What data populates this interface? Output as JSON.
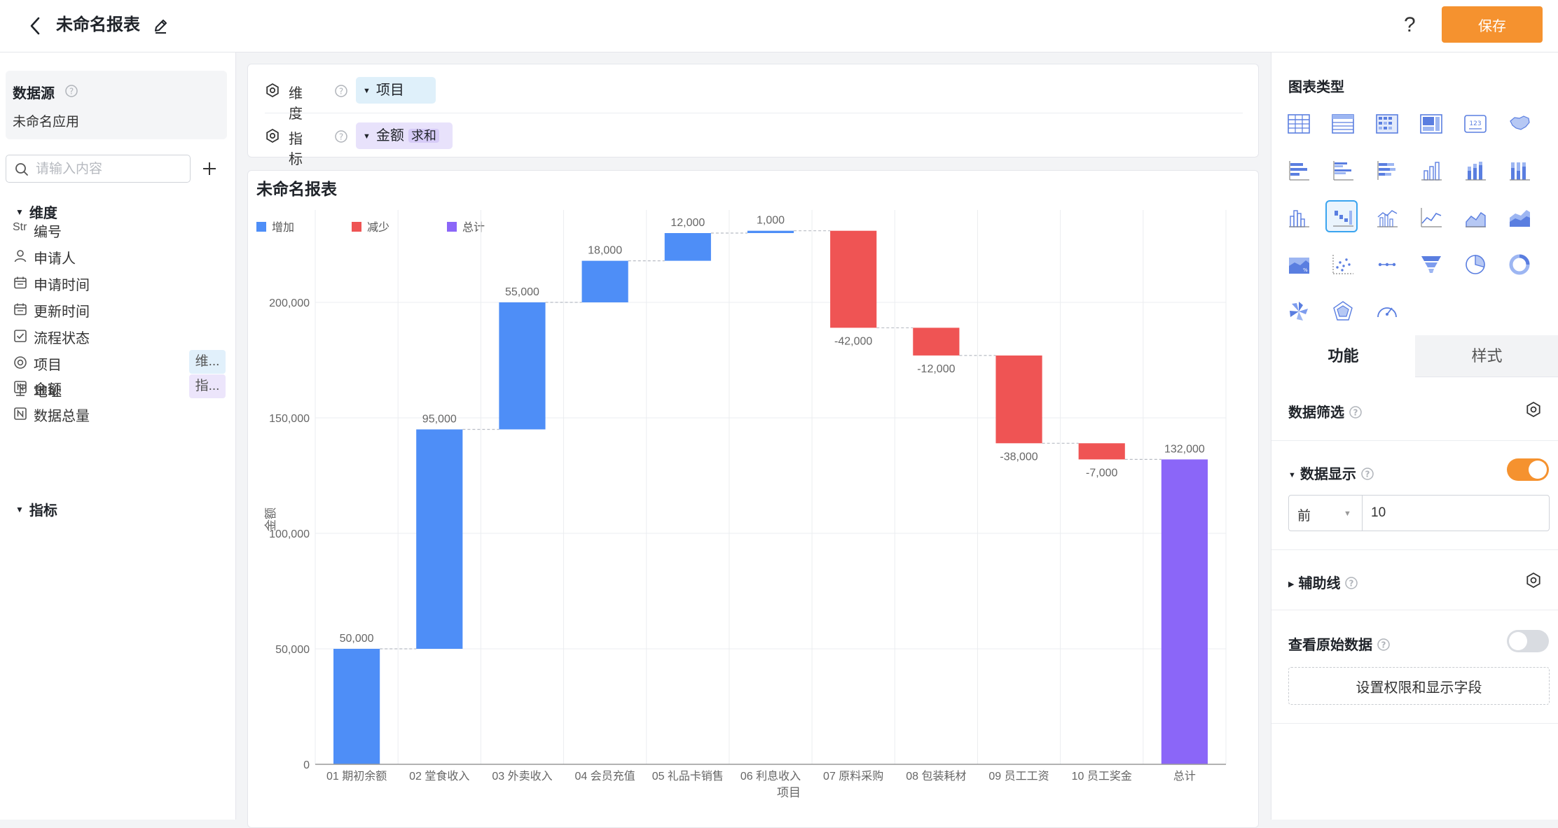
{
  "header": {
    "title": "未命名报表",
    "save_label": "保存",
    "help_label": "?"
  },
  "sidebar": {
    "datasource_title": "数据源",
    "datasource_name": "未命名应用",
    "search_placeholder": "请输入内容",
    "dimension_section": "维度",
    "measure_section": "指标",
    "dimension_fields": [
      {
        "icon": "string-type-icon",
        "label": "编号",
        "prefix": "Str",
        "tag": ""
      },
      {
        "icon": "person-icon",
        "label": "申请人",
        "prefix": "",
        "tag": ""
      },
      {
        "icon": "calendar-icon",
        "label": "申请时间",
        "prefix": "",
        "tag": ""
      },
      {
        "icon": "calendar-icon",
        "label": "更新时间",
        "prefix": "",
        "tag": ""
      },
      {
        "icon": "checkbox-icon",
        "label": "流程状态",
        "prefix": "",
        "tag": ""
      },
      {
        "icon": "radio-icon",
        "label": "项目",
        "prefix": "",
        "tag": "维..."
      },
      {
        "icon": "location-icon",
        "label": "地址",
        "prefix": "",
        "tag": ""
      }
    ],
    "measure_fields": [
      {
        "icon": "number-type-icon",
        "label": "金额",
        "tag": "指..."
      },
      {
        "icon": "number-type-icon",
        "label": "数据总量",
        "tag": ""
      }
    ]
  },
  "config": {
    "dimension_label": "维度",
    "dimension_chip": "项目",
    "measure_label": "指标",
    "measure_chip": "金额",
    "measure_agg": "求和"
  },
  "chart_data": {
    "type": "bar",
    "subtype": "waterfall",
    "title": "未命名报表",
    "xlabel": "项目",
    "ylabel": "金额",
    "ylim": [
      0,
      240000
    ],
    "yticks": [
      0,
      50000,
      100000,
      150000,
      200000
    ],
    "ytick_labels": [
      "0",
      "50,000",
      "100,000",
      "150,000",
      "200,000"
    ],
    "grid": true,
    "legend_position": "top-left",
    "legend": [
      {
        "name": "增加",
        "color": "#4e8ef7"
      },
      {
        "name": "减少",
        "color": "#ef5454"
      },
      {
        "name": "总计",
        "color": "#8b66f8"
      }
    ],
    "categories": [
      "01 期初余额",
      "02 堂食收入",
      "03 外卖收入",
      "04 会员充值",
      "05 礼品卡销售",
      "06 利息收入",
      "07 原料采购",
      "08 包装耗材",
      "09 员工工资",
      "10 员工奖金",
      "总计"
    ],
    "values": [
      50000,
      95000,
      55000,
      18000,
      12000,
      1000,
      -42000,
      -12000,
      -38000,
      -7000,
      132000
    ],
    "value_labels": [
      "50,000",
      "95,000",
      "55,000",
      "18,000",
      "12,000",
      "1,000",
      "-42,000",
      "-12,000",
      "-38,000",
      "-7,000",
      "132,000"
    ],
    "kinds": [
      "increase",
      "increase",
      "increase",
      "increase",
      "increase",
      "increase",
      "decrease",
      "decrease",
      "decrease",
      "decrease",
      "total"
    ]
  },
  "right_panel": {
    "chart_type_title": "图表类型",
    "chart_types": [
      "table-chart-icon",
      "detail-table-icon",
      "pivot-table-icon",
      "card-chart-icon",
      "kpi-number-icon",
      "map-chart-icon",
      "bar-horizontal-icon",
      "bar-grouped-horizontal-icon",
      "bar-stacked-horizontal-icon",
      "column-chart-icon",
      "column-stacked-icon",
      "column-percent-icon",
      "histogram-icon",
      "waterfall-icon",
      "line-column-icon",
      "line-chart-icon",
      "area-chart-icon",
      "area-stacked-icon",
      "area-percent-icon",
      "scatter-chart-icon",
      "dumbbell-chart-icon",
      "funnel-chart-icon",
      "pie-chart-icon",
      "donut-chart-icon",
      "rose-chart-icon",
      "radar-chart-icon",
      "gauge-chart-icon"
    ],
    "active_chart_type": "waterfall-icon",
    "tabs": [
      "功能",
      "样式"
    ],
    "active_tab": "功能",
    "data_filter_label": "数据筛选",
    "data_display_label": "数据显示",
    "data_display_on": true,
    "topn_option": "前",
    "topn_value": "10",
    "aux_line_label": "辅助线",
    "raw_data_label": "查看原始数据",
    "raw_data_on": false,
    "permission_button": "设置权限和显示字段"
  }
}
